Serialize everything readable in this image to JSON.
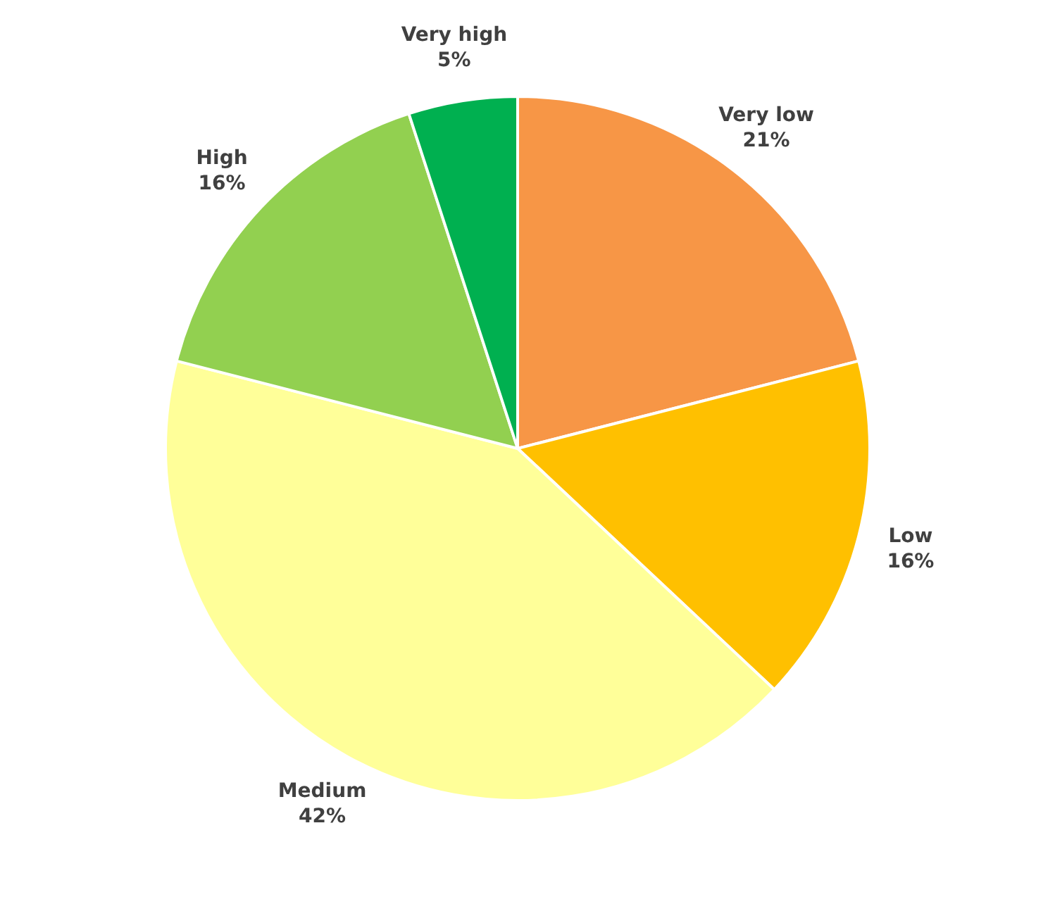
{
  "chart_data": {
    "type": "pie",
    "categories": [
      "Very low",
      "Low",
      "Medium",
      "High",
      "Very high"
    ],
    "values": [
      21,
      16,
      42,
      16,
      5
    ],
    "colors": [
      "#f79646",
      "#ffc000",
      "#ffff99",
      "#92d050",
      "#00b050"
    ],
    "value_labels": [
      "21%",
      "16%",
      "42%",
      "16%",
      "5%"
    ],
    "legend": false
  }
}
